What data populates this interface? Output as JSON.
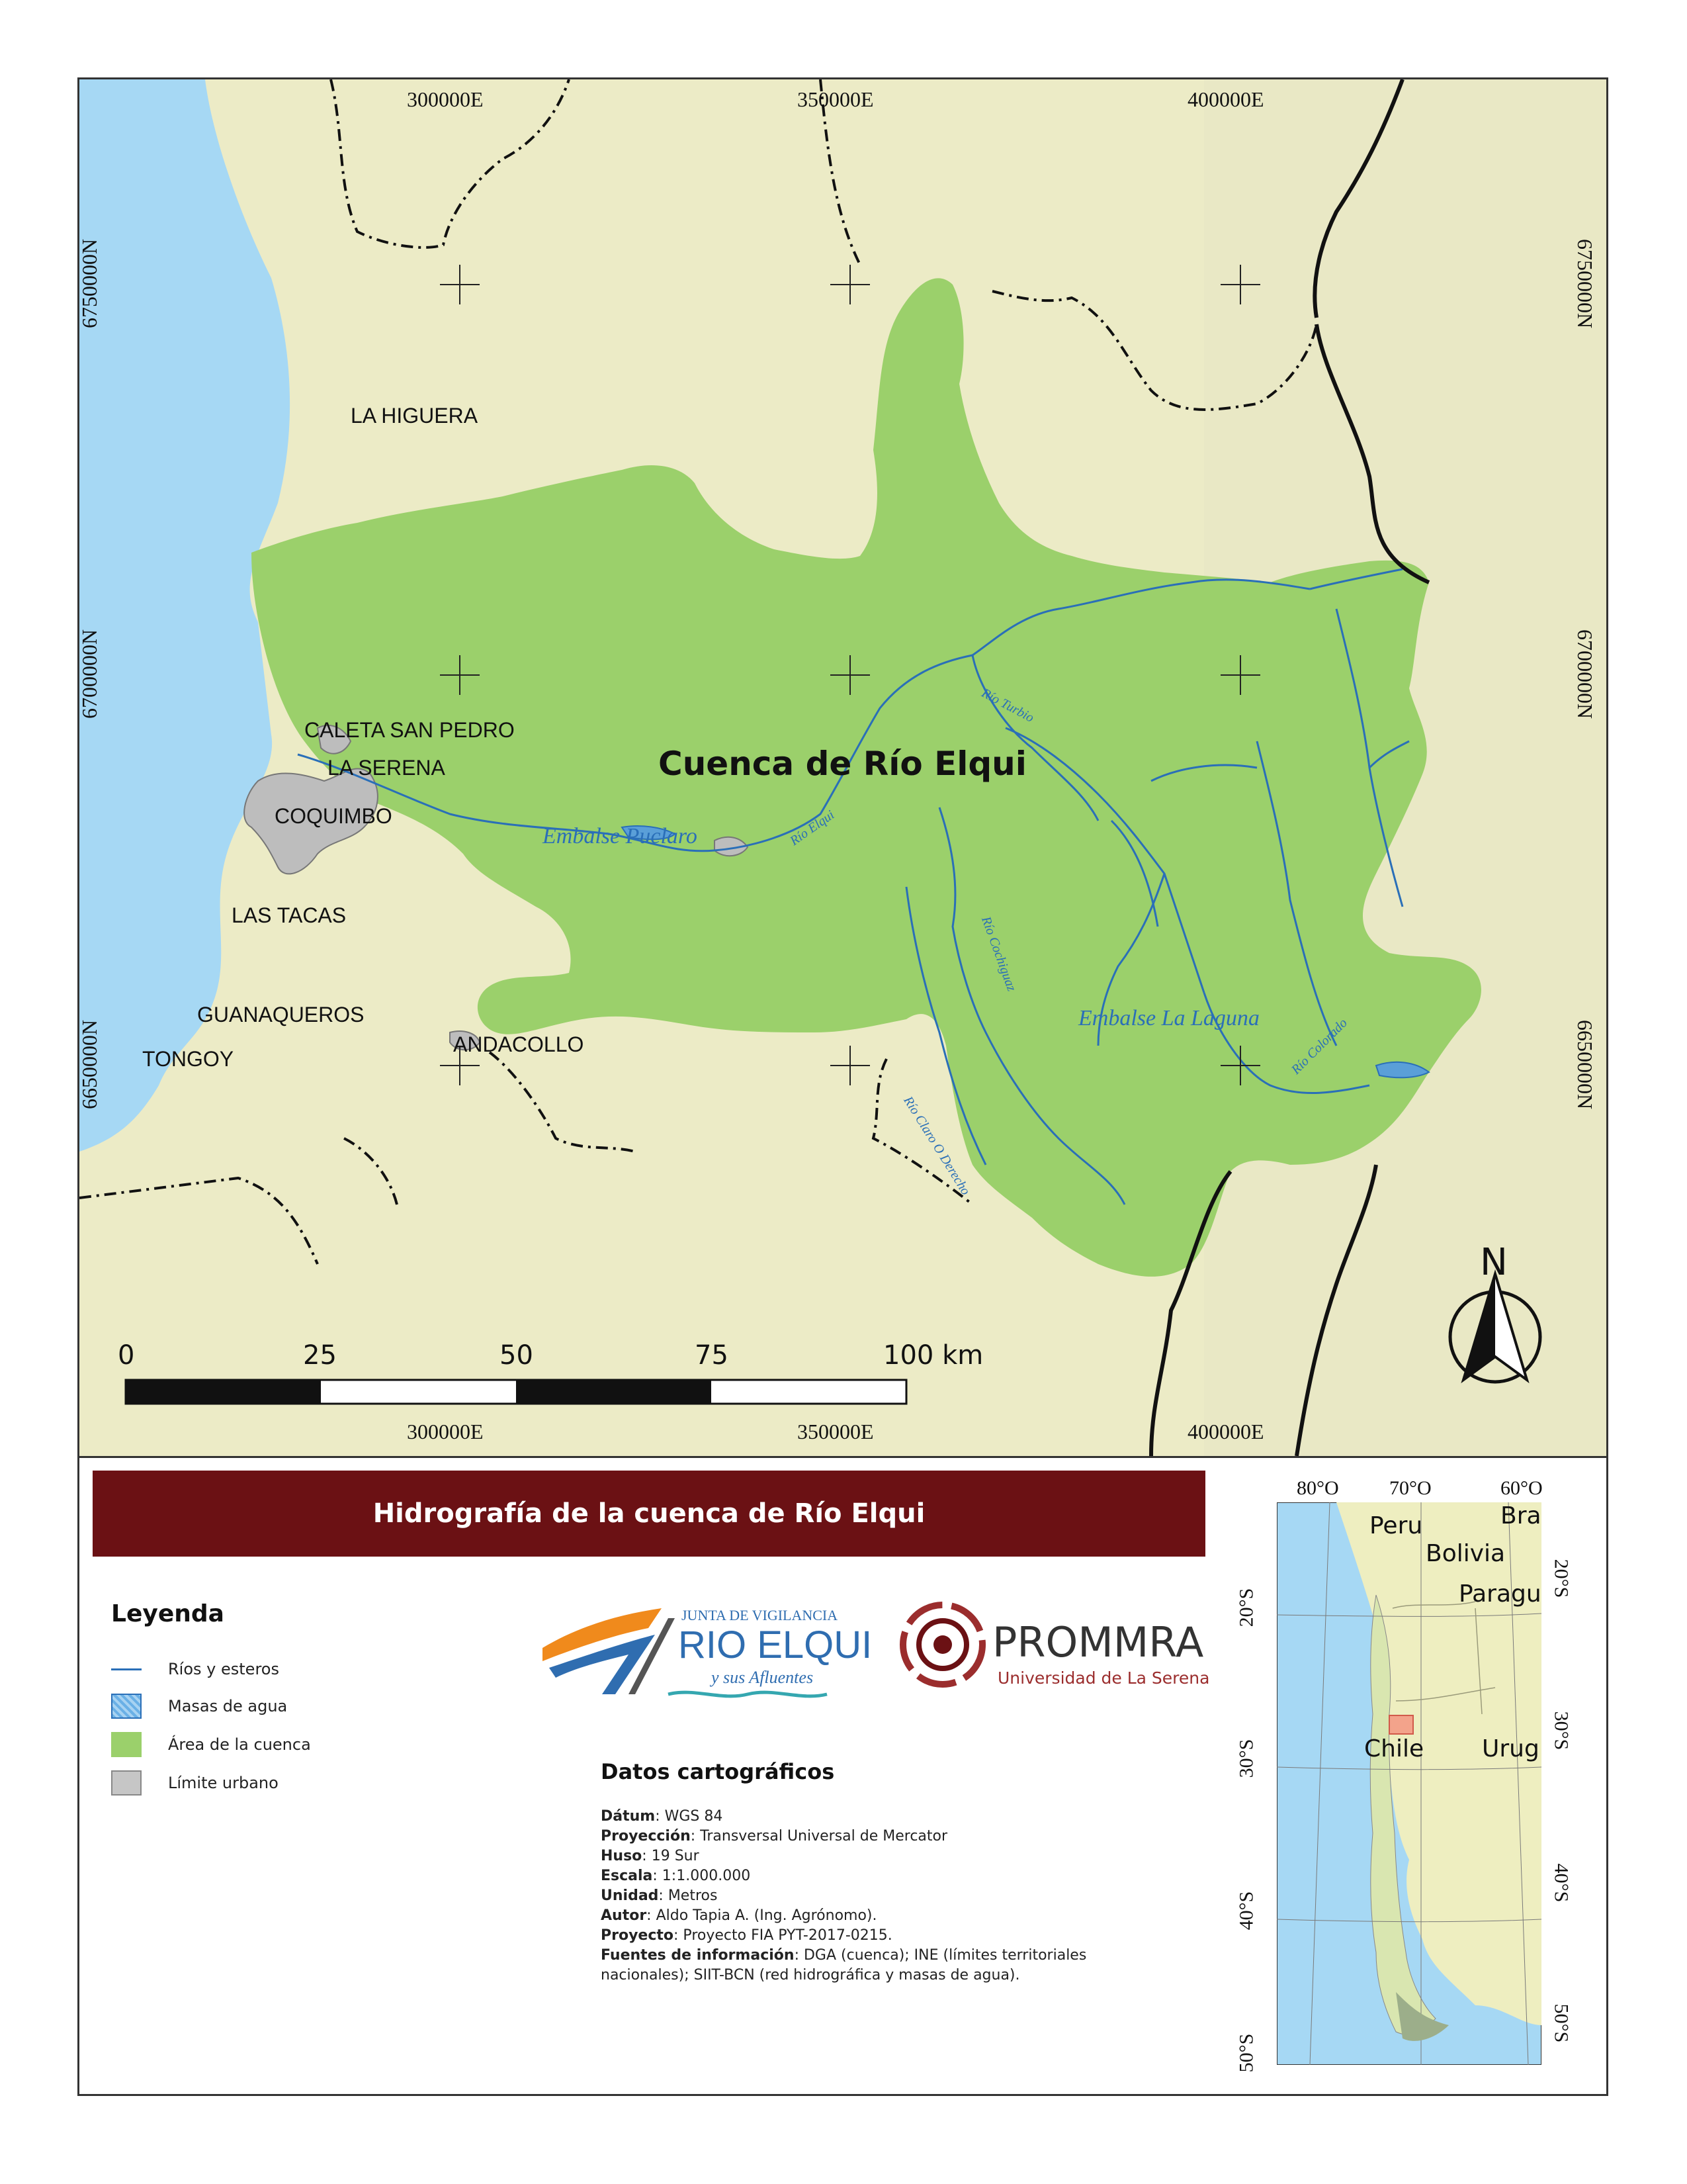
{
  "map": {
    "basin_name": "Cuenca de Río Elqui",
    "places": [
      "LA HIGUERA",
      "CALETA SAN PEDRO",
      "LA SERENA",
      "COQUIMBO",
      "LAS TACAS",
      "GUANAQUEROS",
      "TONGOY",
      "ANDACOLLO"
    ],
    "rivers": [
      "Embalse Puclaro",
      "Río Elqui",
      "Río Turbio",
      "Río Cochiguaz",
      "Embalse La Laguna",
      "Río Claro O Derecho",
      "Río Colorado"
    ],
    "coords_top": [
      "300000E",
      "350000E",
      "400000E"
    ],
    "coords_bottom": [
      "300000E",
      "350000E",
      "400000E"
    ],
    "coords_left": [
      "6750000N",
      "6700000N",
      "6650000N"
    ],
    "coords_right": [
      "6750000N",
      "6700000N",
      "6650000N"
    ],
    "north": "N",
    "scale": {
      "ticks": [
        "0",
        "25",
        "50",
        "75",
        "100 km"
      ]
    },
    "colors": {
      "basin": "#9bd06b",
      "terrain": "#ecebc6",
      "sea": "#a6d8f4",
      "urban": "#bdbdbd",
      "river": "#2a6fb8"
    }
  },
  "title": "Hidrografía de la cuenca de Río Elqui",
  "legend": {
    "title": "Leyenda",
    "items": [
      "Ríos y esteros",
      "Masas de agua",
      "Área de la cuenca",
      "Límite urbano"
    ]
  },
  "logos": {
    "junta": {
      "line1": "JUNTA DE VIGILANCIA",
      "line2": "RIO ELQUI",
      "line3": "y sus Afluentes"
    },
    "prommra": {
      "line1": "PROMMRA",
      "line2": "Universidad de La Serena"
    }
  },
  "datos": {
    "title": "Datos cartográficos",
    "rows": [
      {
        "k": "Dátum",
        "v": ": WGS 84"
      },
      {
        "k": "Proyección",
        "v": ": Transversal Universal de Mercator"
      },
      {
        "k": "Huso",
        "v": ": 19 Sur"
      },
      {
        "k": "Escala",
        "v": ": 1:1.000.000"
      },
      {
        "k": "Unidad",
        "v": ": Metros"
      },
      {
        "k": "Autor",
        "v": ": Aldo Tapia A. (Ing. Agrónomo)."
      },
      {
        "k": "Proyecto",
        "v": ": Proyecto FIA PYT-2017-0215."
      },
      {
        "k": "Fuentes de información",
        "v": ": DGA (cuenca); INE (límites territoriales nacionales); SIIT-BCN (red hidrográfica y masas de agua)."
      }
    ]
  },
  "inset": {
    "countries": [
      "Peru",
      "Bra",
      "Bolivia",
      "Paragu",
      "Chile",
      "Urug"
    ],
    "lon_labels": [
      "80°O",
      "70°O",
      "60°O"
    ],
    "lat_left": [
      "20°S",
      "30°S",
      "40°S",
      "50°S"
    ],
    "lat_right": [
      "20°S",
      "30°S",
      "40°S",
      "50°S"
    ]
  }
}
